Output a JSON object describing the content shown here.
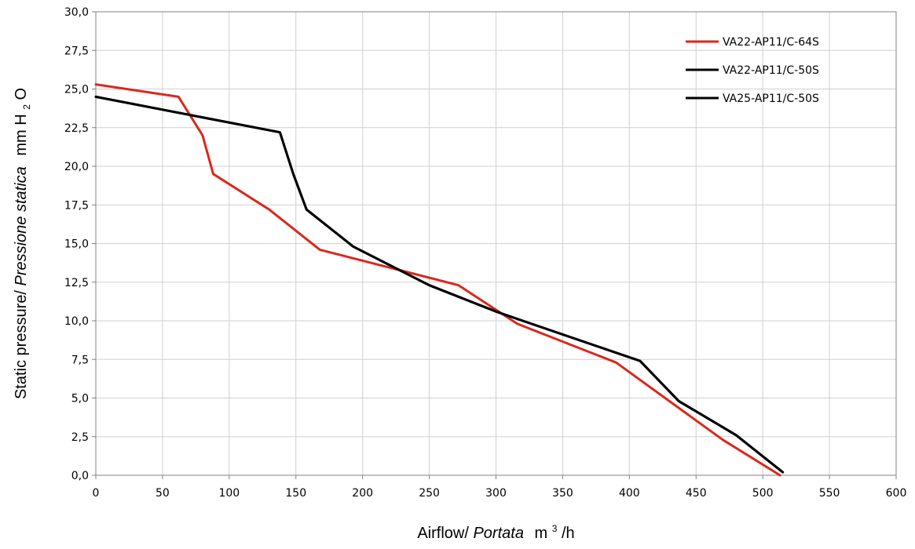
{
  "chart_data": {
    "type": "line",
    "xlabel_parts": [
      "Airflow/",
      "Portata",
      "m",
      "3",
      "/h"
    ],
    "ylabel_parts": [
      "Static pressure/",
      "Pressione statica",
      "mm  H",
      "2",
      "O"
    ],
    "xlim": [
      0,
      600
    ],
    "ylim": [
      0,
      30
    ],
    "x_ticks": [
      "0",
      "50",
      "100",
      "150",
      "200",
      "250",
      "300",
      "350",
      "400",
      "450",
      "500",
      "550",
      "600"
    ],
    "y_ticks": [
      "0,0",
      "2,5",
      "5,0",
      "7,5",
      "10,0",
      "12,5",
      "15,0",
      "17,5",
      "20,0",
      "22,5",
      "25,0",
      "27,5",
      "30,0"
    ],
    "grid": true,
    "legend_position": "top-right",
    "series": [
      {
        "name": "VA22-AP11/C-64S",
        "color": "#d9281e",
        "x": [
          0,
          62,
          80,
          88,
          130,
          168,
          272,
          316,
          390,
          470,
          513
        ],
        "y": [
          25.3,
          24.5,
          22.0,
          19.5,
          17.2,
          14.6,
          12.3,
          9.8,
          7.3,
          2.3,
          0.0
        ]
      },
      {
        "name": "VA22-AP11/C-50S",
        "color": "#000000",
        "x": [
          0,
          138,
          148,
          158,
          193,
          250,
          300,
          320,
          408,
          437,
          480,
          515
        ],
        "y": [
          24.5,
          22.2,
          19.5,
          17.2,
          14.8,
          12.3,
          10.6,
          10.0,
          7.4,
          4.8,
          2.6,
          0.2
        ]
      },
      {
        "name": "VA25-AP11/C-50S",
        "color": "#000000",
        "x": [
          0,
          138,
          148,
          158,
          193,
          250,
          300,
          320,
          408,
          437,
          480,
          515
        ],
        "y": [
          24.5,
          22.2,
          19.5,
          17.2,
          14.8,
          12.3,
          10.6,
          10.0,
          7.4,
          4.8,
          2.6,
          0.2
        ]
      }
    ]
  }
}
